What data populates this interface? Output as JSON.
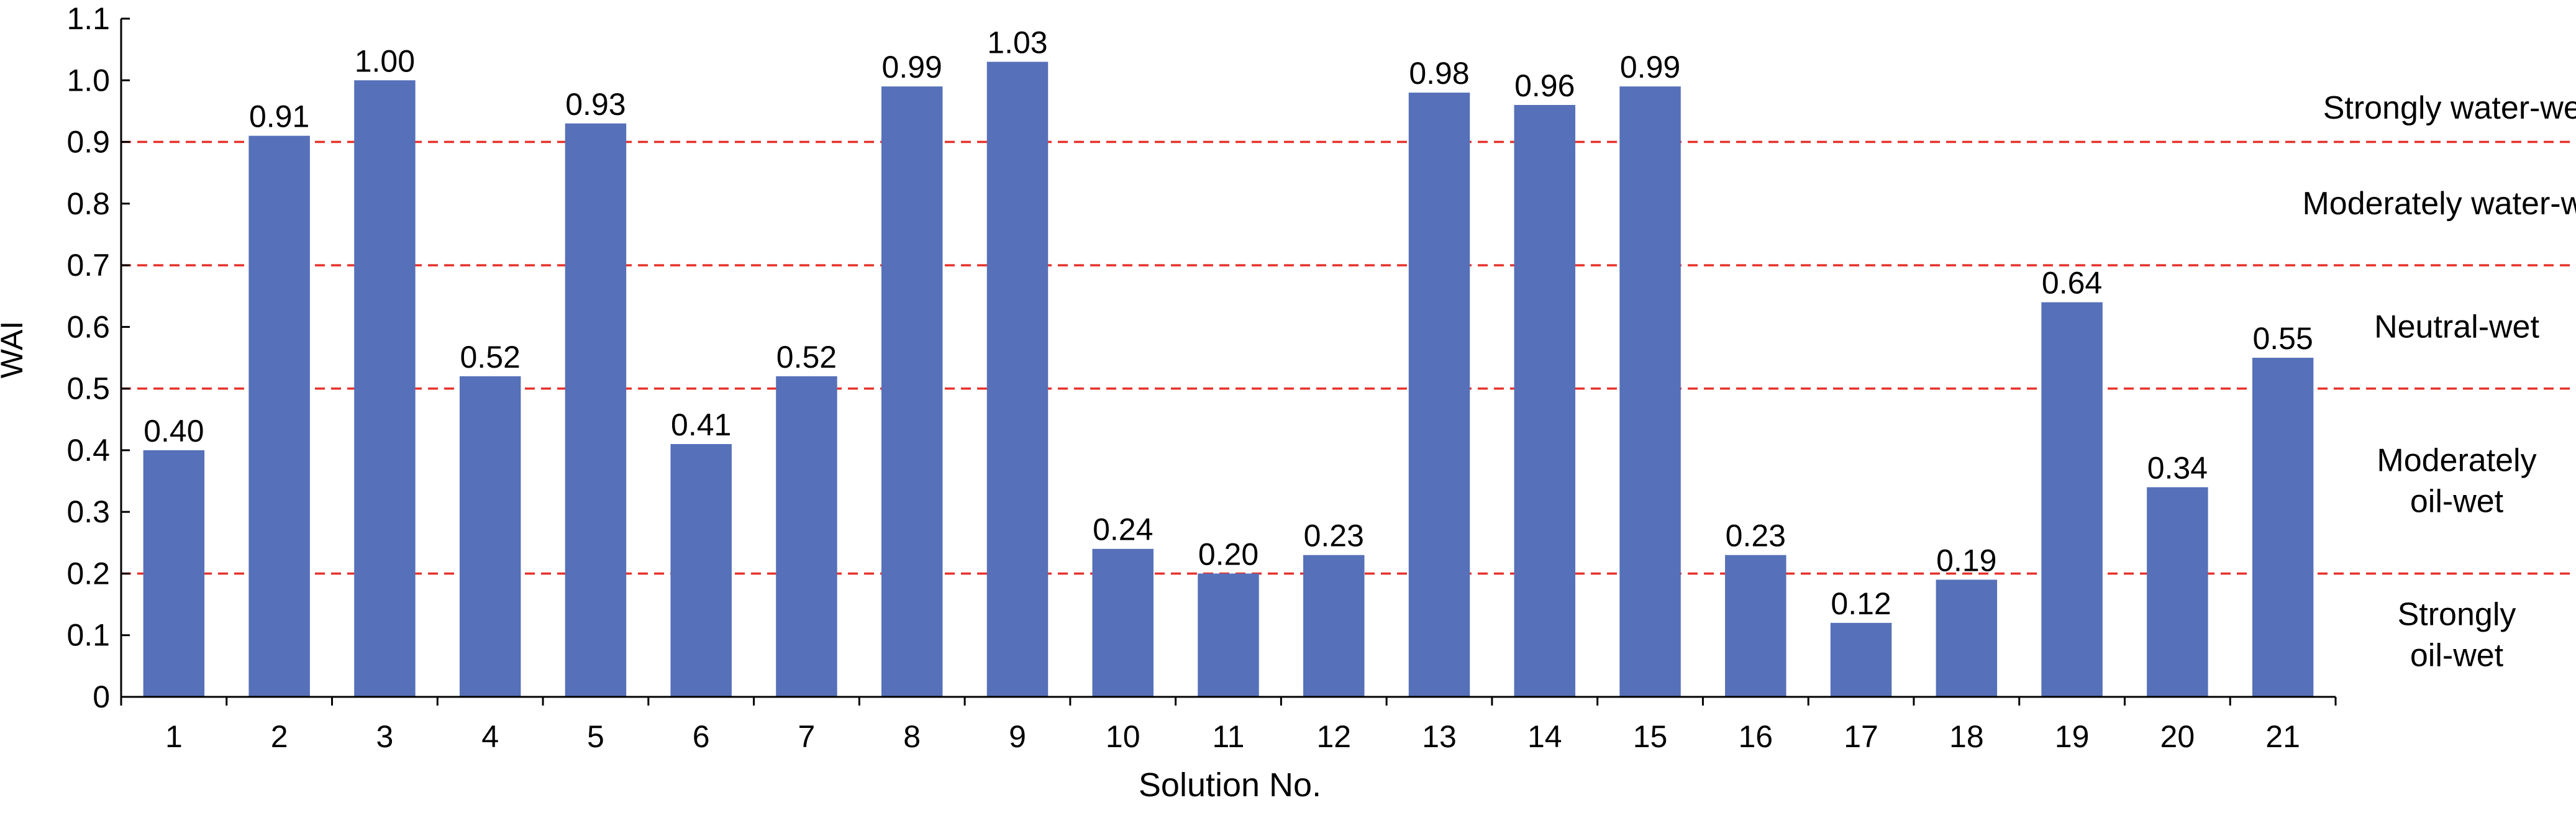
{
  "chart_data": {
    "type": "bar",
    "title": "",
    "xlabel": "Solution No.",
    "ylabel": "WAI",
    "ylim": [
      0,
      1.1
    ],
    "yticks": [
      "0",
      "0.1",
      "0.2",
      "0.3",
      "0.4",
      "0.5",
      "0.6",
      "0.7",
      "0.8",
      "0.9",
      "1.0",
      "1.1"
    ],
    "categories": [
      "1",
      "2",
      "3",
      "4",
      "5",
      "6",
      "7",
      "8",
      "9",
      "10",
      "11",
      "12",
      "13",
      "14",
      "15",
      "16",
      "17",
      "18",
      "19",
      "20",
      "21"
    ],
    "values": [
      0.4,
      0.91,
      1.0,
      0.52,
      0.93,
      0.41,
      0.52,
      0.99,
      1.03,
      0.24,
      0.2,
      0.23,
      0.98,
      0.96,
      0.99,
      0.23,
      0.12,
      0.19,
      0.64,
      0.34,
      0.55
    ],
    "value_labels": [
      "0.40",
      "0.91",
      "1.00",
      "0.52",
      "0.93",
      "0.41",
      "0.52",
      "0.99",
      "1.03",
      "0.24",
      "0.20",
      "0.23",
      "0.98",
      "0.96",
      "0.99",
      "0.23",
      "0.12",
      "0.19",
      "0.64",
      "0.34",
      "0.55"
    ],
    "bar_color": "#5670b9",
    "threshold_lines": {
      "values": [
        0.2,
        0.5,
        0.7,
        0.9
      ],
      "color": "#e8302a",
      "style": "dashed"
    },
    "zone_labels": [
      {
        "lines": [
          "Strongly water-wet"
        ],
        "y_center": 0.955
      },
      {
        "lines": [
          "Moderately water-wet"
        ],
        "y_center": 0.8
      },
      {
        "lines": [
          "Neutral-wet"
        ],
        "y_center": 0.6
      },
      {
        "lines": [
          "Moderately",
          "oil-wet"
        ],
        "y_center": 0.35
      },
      {
        "lines": [
          "Strongly",
          "oil-wet"
        ],
        "y_center": 0.1
      }
    ],
    "grid": false,
    "legend": "none"
  }
}
